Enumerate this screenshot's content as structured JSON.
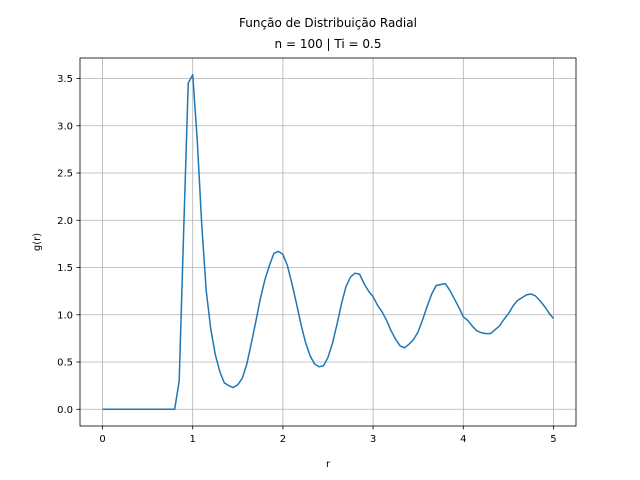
{
  "chart_data": {
    "type": "line",
    "title": "Função de Distribuição Radial",
    "subtitle": "n = 100 | Ti = 0.5",
    "x_label": "r",
    "y_label": "g(r)",
    "color": "#1f77b4",
    "grid": true,
    "x": [
      0,
      0.05,
      0.1,
      0.15,
      0.2,
      0.25,
      0.3,
      0.35,
      0.4,
      0.45,
      0.5,
      0.55,
      0.6,
      0.65,
      0.7,
      0.75,
      0.8,
      0.85,
      0.9,
      0.95,
      1.0,
      1.05,
      1.1,
      1.15,
      1.2,
      1.25,
      1.3,
      1.35,
      1.4,
      1.45,
      1.5,
      1.55,
      1.6,
      1.65,
      1.7,
      1.75,
      1.8,
      1.85,
      1.9,
      1.95,
      2.0,
      2.05,
      2.1,
      2.15,
      2.2,
      2.25,
      2.3,
      2.35,
      2.4,
      2.45,
      2.5,
      2.55,
      2.6,
      2.65,
      2.7,
      2.75,
      2.8,
      2.85,
      2.9,
      2.95,
      3.0,
      3.05,
      3.1,
      3.15,
      3.2,
      3.25,
      3.3,
      3.35,
      3.4,
      3.45,
      3.5,
      3.55,
      3.6,
      3.65,
      3.7,
      3.75,
      3.8,
      3.85,
      3.9,
      3.95,
      4.0,
      4.05,
      4.1,
      4.15,
      4.2,
      4.25,
      4.3,
      4.35,
      4.4,
      4.45,
      4.5,
      4.55,
      4.6,
      4.65,
      4.7,
      4.75,
      4.8,
      4.85,
      4.9,
      4.95,
      5.0
    ],
    "values": [
      0,
      0,
      0,
      0,
      0,
      0,
      0,
      0,
      0,
      0,
      0,
      0,
      0,
      0,
      0,
      0,
      0,
      0.3,
      1.9,
      3.45,
      3.54,
      2.85,
      1.95,
      1.25,
      0.85,
      0.58,
      0.4,
      0.28,
      0.25,
      0.23,
      0.26,
      0.33,
      0.48,
      0.7,
      0.93,
      1.17,
      1.37,
      1.52,
      1.65,
      1.67,
      1.64,
      1.52,
      1.33,
      1.12,
      0.9,
      0.71,
      0.57,
      0.48,
      0.45,
      0.46,
      0.55,
      0.7,
      0.9,
      1.12,
      1.3,
      1.4,
      1.44,
      1.43,
      1.33,
      1.25,
      1.19,
      1.1,
      1.03,
      0.94,
      0.83,
      0.74,
      0.67,
      0.65,
      0.69,
      0.74,
      0.82,
      0.95,
      1.09,
      1.22,
      1.31,
      1.32,
      1.33,
      1.26,
      1.17,
      1.08,
      0.98,
      0.94,
      0.88,
      0.83,
      0.81,
      0.8,
      0.8,
      0.84,
      0.88,
      0.95,
      1.01,
      1.09,
      1.15,
      1.18,
      1.21,
      1.22,
      1.2,
      1.15,
      1.09,
      1.02,
      0.96
    ],
    "xlim": [
      -0.25,
      5.25
    ],
    "xticks": [
      0,
      1,
      2,
      3,
      4,
      5
    ],
    "ylim": [
      -0.177,
      3.717
    ],
    "yticks": [
      {
        "value": 0,
        "label": "0.0"
      },
      0.5,
      {
        "value": 1,
        "label": "1.0"
      },
      1.5,
      {
        "value": 2,
        "label": "2.0"
      },
      2.5,
      {
        "value": 3,
        "label": "3.0"
      },
      3.5
    ]
  }
}
